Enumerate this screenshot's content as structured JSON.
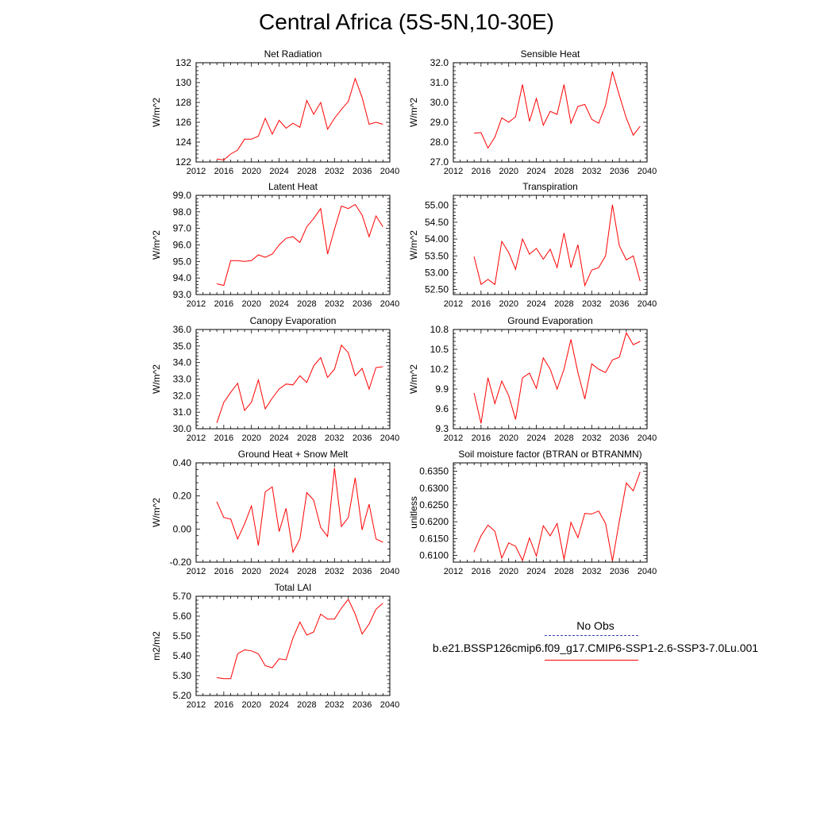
{
  "page_title": "Central Africa (5S-5N,10-30E)",
  "legend": {
    "entries": [
      {
        "name": "No Obs",
        "color": "#3a3ab0",
        "dash": "dashed"
      },
      {
        "name": "b.e21.BSSP126cmip6.f09_g17.CMIP6-SSP1-2.6-SSP3-7.0Lu.001",
        "color": "#ff0000",
        "dash": "solid"
      }
    ]
  },
  "chart_data": [
    {
      "type": "line",
      "title": "Net Radiation",
      "ylabel": "W/m^2",
      "xlim": [
        2012,
        2040
      ],
      "xticks": [
        2012,
        2016,
        2020,
        2024,
        2028,
        2032,
        2036,
        2040
      ],
      "ylim": [
        122,
        132
      ],
      "yticks": [
        "122",
        "124",
        "126",
        "128",
        "130",
        "132"
      ],
      "series": [
        {
          "color": "#ff0000",
          "x": [
            2015,
            2016,
            2017,
            2018,
            2019,
            2020,
            2021,
            2022,
            2023,
            2024,
            2025,
            2026,
            2027,
            2028,
            2029,
            2030,
            2031,
            2032,
            2033,
            2034,
            2035,
            2036,
            2037,
            2038,
            2039
          ],
          "y": [
            122.3,
            122.2,
            122.8,
            123.2,
            124.3,
            124.3,
            124.6,
            126.4,
            124.8,
            126.2,
            125.4,
            125.9,
            125.5,
            128.2,
            126.8,
            128.0,
            125.3,
            126.4,
            127.3,
            128.1,
            130.4,
            128.5,
            125.8,
            126.0,
            125.8
          ]
        }
      ]
    },
    {
      "type": "line",
      "title": "Sensible Heat",
      "ylabel": "W/m^2",
      "xlim": [
        2012,
        2040
      ],
      "xticks": [
        2012,
        2016,
        2020,
        2024,
        2028,
        2032,
        2036,
        2040
      ],
      "ylim": [
        27,
        32
      ],
      "yticks": [
        "27.0",
        "28.0",
        "29.0",
        "30.0",
        "31.0",
        "32.0"
      ],
      "series": [
        {
          "color": "#ff0000",
          "x": [
            2015,
            2016,
            2017,
            2018,
            2019,
            2020,
            2021,
            2022,
            2023,
            2024,
            2025,
            2026,
            2027,
            2028,
            2029,
            2030,
            2031,
            2032,
            2033,
            2034,
            2035,
            2036,
            2037,
            2038,
            2039
          ],
          "y": [
            28.45,
            28.48,
            27.7,
            28.25,
            29.22,
            29.0,
            29.28,
            30.9,
            29.05,
            30.2,
            28.85,
            29.55,
            29.4,
            30.9,
            28.95,
            29.8,
            29.9,
            29.15,
            28.95,
            29.85,
            31.55,
            30.35,
            29.2,
            28.35,
            28.8
          ]
        }
      ]
    },
    {
      "type": "line",
      "title": "Latent Heat",
      "ylabel": "W/m^2",
      "xlim": [
        2012,
        2040
      ],
      "xticks": [
        2012,
        2016,
        2020,
        2024,
        2028,
        2032,
        2036,
        2040
      ],
      "ylim": [
        93,
        99
      ],
      "yticks": [
        "93.0",
        "94.0",
        "95.0",
        "96.0",
        "97.0",
        "98.0",
        "99.0"
      ],
      "series": [
        {
          "color": "#ff0000",
          "x": [
            2015,
            2016,
            2017,
            2018,
            2019,
            2020,
            2021,
            2022,
            2023,
            2024,
            2025,
            2026,
            2027,
            2028,
            2029,
            2030,
            2031,
            2032,
            2033,
            2034,
            2035,
            2036,
            2037,
            2038,
            2039
          ],
          "y": [
            93.65,
            93.55,
            95.05,
            95.05,
            95.0,
            95.05,
            95.4,
            95.25,
            95.45,
            96.0,
            96.4,
            96.5,
            96.15,
            97.1,
            97.6,
            98.2,
            95.45,
            96.95,
            98.35,
            98.2,
            98.45,
            97.8,
            96.5,
            97.75,
            97.1
          ]
        }
      ]
    },
    {
      "type": "line",
      "title": "Transpiration",
      "ylabel": "W/m^2",
      "xlim": [
        2012,
        2040
      ],
      "xticks": [
        2012,
        2016,
        2020,
        2024,
        2028,
        2032,
        2036,
        2040
      ],
      "ylim": [
        52.35,
        55.3
      ],
      "yticks": [
        "52.50",
        "53.00",
        "53.50",
        "54.00",
        "54.50",
        "55.00"
      ],
      "series": [
        {
          "color": "#ff0000",
          "x": [
            2015,
            2016,
            2017,
            2018,
            2019,
            2020,
            2021,
            2022,
            2023,
            2024,
            2025,
            2026,
            2027,
            2028,
            2029,
            2030,
            2031,
            2032,
            2033,
            2034,
            2035,
            2036,
            2037,
            2038,
            2039
          ],
          "y": [
            53.48,
            52.65,
            52.8,
            52.65,
            53.93,
            53.6,
            53.1,
            54.0,
            53.55,
            53.72,
            53.4,
            53.7,
            53.15,
            54.18,
            53.15,
            53.83,
            52.62,
            53.08,
            53.15,
            53.5,
            55.02,
            53.8,
            53.38,
            53.5,
            52.75
          ]
        }
      ]
    },
    {
      "type": "line",
      "title": "Canopy Evaporation",
      "ylabel": "W/m^2",
      "xlim": [
        2012,
        2040
      ],
      "xticks": [
        2012,
        2016,
        2020,
        2024,
        2028,
        2032,
        2036,
        2040
      ],
      "ylim": [
        30,
        36
      ],
      "yticks": [
        "30.0",
        "31.0",
        "32.0",
        "33.0",
        "34.0",
        "35.0",
        "36.0"
      ],
      "series": [
        {
          "color": "#ff0000",
          "x": [
            2015,
            2016,
            2017,
            2018,
            2019,
            2020,
            2021,
            2022,
            2023,
            2024,
            2025,
            2026,
            2027,
            2028,
            2029,
            2030,
            2031,
            2032,
            2033,
            2034,
            2035,
            2036,
            2037,
            2038,
            2039
          ],
          "y": [
            30.35,
            31.6,
            32.2,
            32.75,
            31.1,
            31.6,
            32.95,
            31.2,
            31.85,
            32.4,
            32.7,
            32.65,
            33.2,
            32.8,
            33.8,
            34.3,
            33.1,
            33.6,
            35.05,
            34.6,
            33.2,
            33.65,
            32.4,
            33.7,
            33.75
          ]
        }
      ]
    },
    {
      "type": "line",
      "title": "Ground Evaporation",
      "ylabel": "W/m^2",
      "xlim": [
        2012,
        2040
      ],
      "xticks": [
        2012,
        2016,
        2020,
        2024,
        2028,
        2032,
        2036,
        2040
      ],
      "ylim": [
        9.3,
        10.8
      ],
      "yticks": [
        "9.3",
        "9.6",
        "9.9",
        "10.2",
        "10.5",
        "10.8"
      ],
      "series": [
        {
          "color": "#ff0000",
          "x": [
            2015,
            2016,
            2017,
            2018,
            2019,
            2020,
            2021,
            2022,
            2023,
            2024,
            2025,
            2026,
            2027,
            2028,
            2029,
            2030,
            2031,
            2032,
            2033,
            2034,
            2035,
            2036,
            2037,
            2038,
            2039
          ],
          "y": [
            9.84,
            9.38,
            10.07,
            9.68,
            10.02,
            9.8,
            9.44,
            10.07,
            10.14,
            9.91,
            10.37,
            10.2,
            9.9,
            10.2,
            10.65,
            10.15,
            9.75,
            10.28,
            10.2,
            10.15,
            10.34,
            10.38,
            10.75,
            10.57,
            10.62
          ]
        }
      ]
    },
    {
      "type": "line",
      "title": "Ground Heat + Snow Melt",
      "ylabel": "W/m^2",
      "xlim": [
        2012,
        2040
      ],
      "xticks": [
        2012,
        2016,
        2020,
        2024,
        2028,
        2032,
        2036,
        2040
      ],
      "ylim": [
        -0.2,
        0.4
      ],
      "yticks": [
        "-0.20",
        "0.00",
        "0.20",
        "0.40"
      ],
      "series": [
        {
          "color": "#ff0000",
          "x": [
            2015,
            2016,
            2017,
            2018,
            2019,
            2020,
            2021,
            2022,
            2023,
            2024,
            2025,
            2026,
            2027,
            2028,
            2029,
            2030,
            2031,
            2032,
            2033,
            2034,
            2035,
            2036,
            2037,
            2038,
            2039
          ],
          "y": [
            0.165,
            0.07,
            0.06,
            -0.06,
            0.03,
            0.14,
            -0.1,
            0.225,
            0.255,
            -0.015,
            0.125,
            -0.14,
            -0.06,
            0.22,
            0.175,
            0.01,
            -0.045,
            0.37,
            0.015,
            0.07,
            0.31,
            -0.005,
            0.15,
            -0.06,
            -0.08
          ]
        }
      ]
    },
    {
      "type": "line",
      "title": "Soil moisture factor (BTRAN or BTRANMN)",
      "ylabel": "unitless",
      "xlim": [
        2012,
        2040
      ],
      "xticks": [
        2012,
        2016,
        2020,
        2024,
        2028,
        2032,
        2036,
        2040
      ],
      "ylim": [
        0.608,
        0.6375
      ],
      "yticks": [
        "0.6100",
        "0.6150",
        "0.6200",
        "0.6250",
        "0.6300",
        "0.6350"
      ],
      "series": [
        {
          "color": "#ff0000",
          "x": [
            2015,
            2016,
            2017,
            2018,
            2019,
            2020,
            2021,
            2022,
            2023,
            2024,
            2025,
            2026,
            2027,
            2028,
            2029,
            2030,
            2031,
            2032,
            2033,
            2034,
            2035,
            2036,
            2037,
            2038,
            2039
          ],
          "y": [
            0.611,
            0.6158,
            0.619,
            0.6172,
            0.6092,
            0.6137,
            0.6127,
            0.6085,
            0.6152,
            0.6098,
            0.6188,
            0.6158,
            0.6195,
            0.6088,
            0.6198,
            0.6153,
            0.6225,
            0.6223,
            0.6232,
            0.6195,
            0.6083,
            0.6202,
            0.6315,
            0.6292,
            0.6348
          ]
        }
      ]
    },
    {
      "type": "line",
      "title": "Total LAI",
      "ylabel": "m2/m2",
      "xlim": [
        2012,
        2040
      ],
      "xticks": [
        2012,
        2016,
        2020,
        2024,
        2028,
        2032,
        2036,
        2040
      ],
      "ylim": [
        5.2,
        5.7
      ],
      "yticks": [
        "5.20",
        "5.30",
        "5.40",
        "5.50",
        "5.60",
        "5.70"
      ],
      "series": [
        {
          "color": "#ff0000",
          "x": [
            2015,
            2016,
            2017,
            2018,
            2019,
            2020,
            2021,
            2022,
            2023,
            2024,
            2025,
            2026,
            2027,
            2028,
            2029,
            2030,
            2031,
            2032,
            2033,
            2034,
            2035,
            2036,
            2037,
            2038,
            2039
          ],
          "y": [
            5.29,
            5.285,
            5.285,
            5.41,
            5.43,
            5.425,
            5.41,
            5.35,
            5.34,
            5.385,
            5.38,
            5.49,
            5.57,
            5.505,
            5.52,
            5.61,
            5.585,
            5.585,
            5.64,
            5.685,
            5.61,
            5.51,
            5.56,
            5.635,
            5.665
          ]
        }
      ]
    }
  ]
}
